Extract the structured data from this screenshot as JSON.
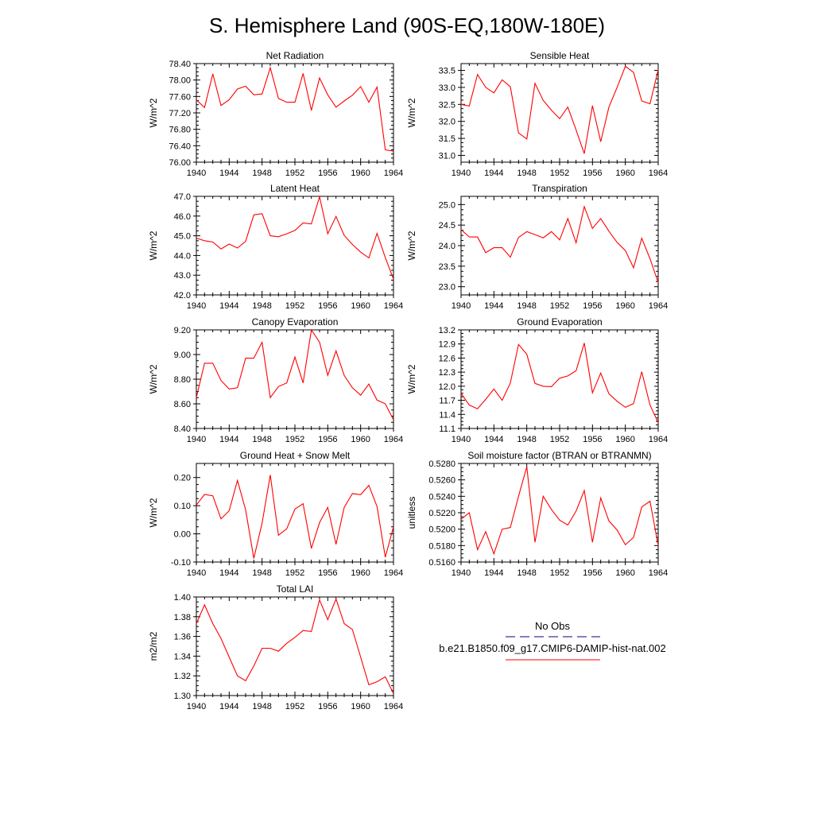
{
  "figure": {
    "title": "S. Hemisphere Land (90S-EQ,180W-180E)"
  },
  "legend": {
    "entries": [
      {
        "label": "No Obs",
        "color": "#000080",
        "dash": true
      },
      {
        "label": "b.e21.B1850.f09_g17.CMIP6-DAMIP-hist-nat.002",
        "color": "#ff0000",
        "dash": false
      }
    ]
  },
  "chart_data": [
    {
      "type": "line",
      "title": "Net Radiation",
      "xlabel": "",
      "ylabel": "W/m^2",
      "xlim": [
        1940,
        1964
      ],
      "ylim": [
        76.0,
        78.4
      ],
      "xticks": [
        1940,
        1944,
        1948,
        1952,
        1956,
        1960,
        1964
      ],
      "yticks": [
        "76.00",
        "76.40",
        "76.80",
        "77.20",
        "77.60",
        "78.00",
        "78.40"
      ],
      "x": [
        1940,
        1941,
        1942,
        1943,
        1944,
        1945,
        1946,
        1947,
        1948,
        1949,
        1950,
        1951,
        1952,
        1953,
        1954,
        1955,
        1956,
        1957,
        1958,
        1959,
        1960,
        1961,
        1962,
        1963,
        1964
      ],
      "series": [
        {
          "color": "#ff0000",
          "values": [
            77.52,
            77.33,
            78.15,
            77.38,
            77.52,
            77.78,
            77.85,
            77.64,
            77.66,
            78.3,
            77.55,
            77.46,
            77.46,
            78.16,
            77.26,
            78.05,
            77.64,
            77.34,
            77.49,
            77.63,
            77.84,
            77.46,
            77.83,
            76.3,
            76.27
          ]
        }
      ]
    },
    {
      "type": "line",
      "title": "Sensible Heat",
      "xlabel": "",
      "ylabel": "W/m^2",
      "xlim": [
        1940,
        1964
      ],
      "ylim": [
        30.8,
        33.7
      ],
      "xticks": [
        1940,
        1944,
        1948,
        1952,
        1956,
        1960,
        1964
      ],
      "yticks": [
        "31.0",
        "31.5",
        "32.0",
        "32.5",
        "33.0",
        "33.5"
      ],
      "x": [
        1940,
        1941,
        1942,
        1943,
        1944,
        1945,
        1946,
        1947,
        1948,
        1949,
        1950,
        1951,
        1952,
        1953,
        1954,
        1955,
        1956,
        1957,
        1958,
        1959,
        1960,
        1961,
        1962,
        1963,
        1964
      ],
      "series": [
        {
          "color": "#ff0000",
          "values": [
            32.5,
            32.45,
            33.38,
            33.0,
            32.84,
            33.22,
            33.02,
            31.66,
            31.48,
            33.12,
            32.62,
            32.33,
            32.08,
            32.42,
            31.75,
            31.05,
            32.46,
            31.4,
            32.42,
            33.0,
            33.62,
            33.44,
            32.6,
            32.52,
            33.52
          ]
        }
      ]
    },
    {
      "type": "line",
      "title": "Latent Heat",
      "xlabel": "",
      "ylabel": "W/m^2",
      "xlim": [
        1940,
        1964
      ],
      "ylim": [
        42.0,
        47.0
      ],
      "xticks": [
        1940,
        1944,
        1948,
        1952,
        1956,
        1960,
        1964
      ],
      "yticks": [
        "42.0",
        "43.0",
        "44.0",
        "45.0",
        "46.0",
        "47.0"
      ],
      "x": [
        1940,
        1941,
        1942,
        1943,
        1944,
        1945,
        1946,
        1947,
        1948,
        1949,
        1950,
        1951,
        1952,
        1953,
        1954,
        1955,
        1956,
        1957,
        1958,
        1959,
        1960,
        1961,
        1962,
        1963,
        1964
      ],
      "series": [
        {
          "color": "#ff0000",
          "values": [
            44.88,
            44.75,
            44.68,
            44.33,
            44.58,
            44.38,
            44.72,
            46.06,
            46.12,
            45.0,
            44.95,
            45.1,
            45.27,
            45.65,
            45.6,
            46.98,
            45.1,
            45.98,
            45.02,
            44.56,
            44.17,
            43.88,
            45.12,
            43.9,
            42.8
          ]
        }
      ]
    },
    {
      "type": "line",
      "title": "Transpiration",
      "xlabel": "",
      "ylabel": "W/m^2",
      "xlim": [
        1940,
        1964
      ],
      "ylim": [
        22.8,
        25.2
      ],
      "xticks": [
        1940,
        1944,
        1948,
        1952,
        1956,
        1960,
        1964
      ],
      "yticks": [
        "23.0",
        "23.5",
        "24.0",
        "24.5",
        "25.0"
      ],
      "x": [
        1940,
        1941,
        1942,
        1943,
        1944,
        1945,
        1946,
        1947,
        1948,
        1949,
        1950,
        1951,
        1952,
        1953,
        1954,
        1955,
        1956,
        1957,
        1958,
        1959,
        1960,
        1961,
        1962,
        1963,
        1964
      ],
      "series": [
        {
          "color": "#ff0000",
          "values": [
            24.39,
            24.21,
            24.21,
            23.83,
            23.95,
            23.95,
            23.72,
            24.2,
            24.34,
            24.27,
            24.19,
            24.34,
            24.14,
            24.66,
            24.07,
            24.95,
            24.42,
            24.66,
            24.35,
            24.08,
            23.88,
            23.46,
            24.18,
            23.68,
            23.1
          ]
        }
      ]
    },
    {
      "type": "line",
      "title": "Canopy Evaporation",
      "xlabel": "",
      "ylabel": "W/m^2",
      "xlim": [
        1940,
        1964
      ],
      "ylim": [
        8.4,
        9.2
      ],
      "xticks": [
        1940,
        1944,
        1948,
        1952,
        1956,
        1960,
        1964
      ],
      "yticks": [
        "8.40",
        "8.60",
        "8.80",
        "9.00",
        "9.20"
      ],
      "x": [
        1940,
        1941,
        1942,
        1943,
        1944,
        1945,
        1946,
        1947,
        1948,
        1949,
        1950,
        1951,
        1952,
        1953,
        1954,
        1955,
        1956,
        1957,
        1958,
        1959,
        1960,
        1961,
        1962,
        1963,
        1964
      ],
      "series": [
        {
          "color": "#ff0000",
          "values": [
            8.65,
            8.93,
            8.93,
            8.79,
            8.72,
            8.73,
            8.97,
            8.97,
            9.1,
            8.65,
            8.74,
            8.77,
            8.98,
            8.77,
            9.2,
            9.1,
            8.83,
            9.03,
            8.83,
            8.73,
            8.67,
            8.76,
            8.63,
            8.6,
            8.47
          ]
        }
      ]
    },
    {
      "type": "line",
      "title": "Ground Evaporation",
      "xlabel": "",
      "ylabel": "W/m^2",
      "xlim": [
        1940,
        1964
      ],
      "ylim": [
        11.1,
        13.2
      ],
      "xticks": [
        1940,
        1944,
        1948,
        1952,
        1956,
        1960,
        1964
      ],
      "yticks": [
        "11.1",
        "11.4",
        "11.7",
        "12.0",
        "12.3",
        "12.6",
        "12.9",
        "13.2"
      ],
      "x": [
        1940,
        1941,
        1942,
        1943,
        1944,
        1945,
        1946,
        1947,
        1948,
        1949,
        1950,
        1951,
        1952,
        1953,
        1954,
        1955,
        1956,
        1957,
        1958,
        1959,
        1960,
        1961,
        1962,
        1963,
        1964
      ],
      "series": [
        {
          "color": "#ff0000",
          "values": [
            11.85,
            11.6,
            11.52,
            11.72,
            11.94,
            11.7,
            12.07,
            12.89,
            12.68,
            12.06,
            12.0,
            11.99,
            12.17,
            12.22,
            12.33,
            12.92,
            11.86,
            12.28,
            11.84,
            11.68,
            11.55,
            11.63,
            12.31,
            11.6,
            11.22
          ]
        }
      ]
    },
    {
      "type": "line",
      "title": "Ground Heat + Snow Melt",
      "xlabel": "",
      "ylabel": "W/m^2",
      "xlim": [
        1940,
        1964
      ],
      "ylim": [
        -0.1,
        0.25
      ],
      "xticks": [
        1940,
        1944,
        1948,
        1952,
        1956,
        1960,
        1964
      ],
      "yticks": [
        "-0.10",
        "0.00",
        "0.10",
        "0.20"
      ],
      "x": [
        1940,
        1941,
        1942,
        1943,
        1944,
        1945,
        1946,
        1947,
        1948,
        1949,
        1950,
        1951,
        1952,
        1953,
        1954,
        1955,
        1956,
        1957,
        1958,
        1959,
        1960,
        1961,
        1962,
        1963,
        1964
      ],
      "series": [
        {
          "color": "#ff0000",
          "values": [
            0.102,
            0.14,
            0.135,
            0.053,
            0.082,
            0.19,
            0.085,
            -0.087,
            0.038,
            0.209,
            -0.005,
            0.018,
            0.088,
            0.107,
            -0.052,
            0.04,
            0.094,
            -0.037,
            0.094,
            0.143,
            0.139,
            0.172,
            0.097,
            -0.083,
            0.025
          ]
        }
      ]
    },
    {
      "type": "line",
      "title": "Soil moisture factor (BTRAN or BTRANMN)",
      "xlabel": "",
      "ylabel": "unitless",
      "xlim": [
        1940,
        1964
      ],
      "ylim": [
        0.516,
        0.528
      ],
      "xticks": [
        1940,
        1944,
        1948,
        1952,
        1956,
        1960,
        1964
      ],
      "yticks": [
        "0.5160",
        "0.5180",
        "0.5200",
        "0.5220",
        "0.5240",
        "0.5260",
        "0.5280"
      ],
      "x": [
        1940,
        1941,
        1942,
        1943,
        1944,
        1945,
        1946,
        1947,
        1948,
        1949,
        1950,
        1951,
        1952,
        1953,
        1954,
        1955,
        1956,
        1957,
        1958,
        1959,
        1960,
        1961,
        1962,
        1963,
        1964
      ],
      "series": [
        {
          "color": "#ff0000",
          "values": [
            0.5212,
            0.522,
            0.5175,
            0.5197,
            0.517,
            0.52,
            0.5202,
            0.524,
            0.5276,
            0.5184,
            0.524,
            0.5224,
            0.5211,
            0.5205,
            0.5222,
            0.5247,
            0.5184,
            0.5238,
            0.521,
            0.5199,
            0.5181,
            0.519,
            0.5227,
            0.5234,
            0.518
          ]
        }
      ]
    },
    {
      "type": "line",
      "title": "Total LAI",
      "xlabel": "",
      "ylabel": "m2/m2",
      "xlim": [
        1940,
        1964
      ],
      "ylim": [
        1.3,
        1.4
      ],
      "xticks": [
        1940,
        1944,
        1948,
        1952,
        1956,
        1960,
        1964
      ],
      "yticks": [
        "1.30",
        "1.32",
        "1.34",
        "1.36",
        "1.38",
        "1.40"
      ],
      "x": [
        1940,
        1941,
        1942,
        1943,
        1944,
        1945,
        1946,
        1947,
        1948,
        1949,
        1950,
        1951,
        1952,
        1953,
        1954,
        1955,
        1956,
        1957,
        1958,
        1959,
        1960,
        1961,
        1962,
        1963,
        1964
      ],
      "series": [
        {
          "color": "#ff0000",
          "values": [
            1.373,
            1.392,
            1.373,
            1.358,
            1.339,
            1.32,
            1.315,
            1.33,
            1.348,
            1.348,
            1.345,
            1.353,
            1.359,
            1.366,
            1.365,
            1.397,
            1.377,
            1.398,
            1.373,
            1.367,
            1.339,
            1.311,
            1.314,
            1.319,
            1.302
          ]
        }
      ]
    }
  ]
}
